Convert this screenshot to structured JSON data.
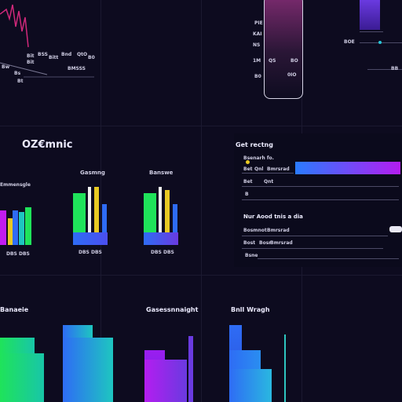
{
  "top_left": {
    "labels": [
      "Bit",
      "BSS",
      "Bnd",
      "QtO",
      "B0",
      "Bit",
      "Bitt",
      "Bw",
      "BMSSS",
      "Bs",
      "Bt"
    ]
  },
  "top_right": {
    "slider_labels": [
      "PIE",
      "KAI",
      "NS",
      "1M",
      "B0"
    ],
    "slider_buttons": [
      "QS",
      "BO",
      "0IO"
    ],
    "marker_labels": [
      "BOE",
      "BB"
    ],
    "slider_gradient": [
      "#3a1a36",
      "#7a2a6e"
    ],
    "marker_color": "#5b33c8"
  },
  "brand": {
    "name": "OZ€mnic"
  },
  "mid_left": {
    "label_left": "Emmensgle",
    "groups": [
      {
        "title": "Gasmng",
        "footer": "DBS DBS"
      },
      {
        "title": "Banswe",
        "footer": "DBS DBS"
      }
    ],
    "footer_left": "DBS DBS",
    "colors": {
      "green": "#1fe35a",
      "blue": "#2e6cf5",
      "yellow": "#e8c923",
      "white": "#f2f2f2",
      "magenta": "#c21cf0",
      "teal": "#1ec6c0"
    }
  },
  "settings": {
    "title": "Get rectng",
    "row1": {
      "label": "Bsenarh fo.",
      "sub1": "Bet",
      "sub2": "Qnl",
      "sub3": "Bmrsrad"
    },
    "row2": {
      "label1": "Bet",
      "label2": "Qnt"
    },
    "row3": {
      "label": "B"
    },
    "progress": 1.0,
    "gradient": [
      "#2a7bff",
      "#b41df0"
    ],
    "section2_title": "Nur Aood tnis a dia",
    "row4": {
      "label1": "Bosmnot",
      "label2": "Bmrsrad"
    },
    "row5": {
      "label1": "Bost",
      "label2": "Bosr",
      "label3": "Bmrsrad"
    },
    "row6": {
      "label": "Bsne"
    }
  },
  "bottom": {
    "left_title": "Banaeie",
    "mid_title": "Gasessnnaight",
    "right_title": "Bnll Wragh"
  }
}
